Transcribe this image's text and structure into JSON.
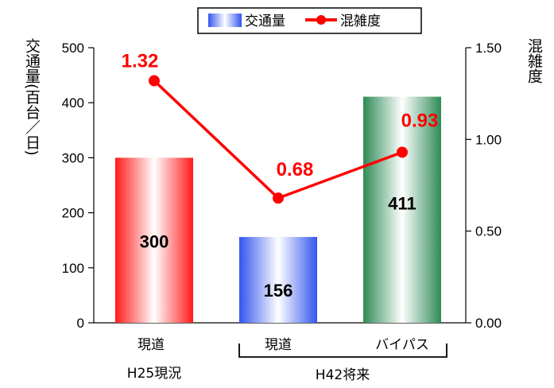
{
  "chart_data": {
    "type": "bar",
    "categories": [
      "現道",
      "現道",
      "バイパス"
    ],
    "groups": [
      {
        "label": "H25現況",
        "categories": [
          0
        ]
      },
      {
        "label": "H42将来",
        "categories": [
          1,
          2
        ]
      }
    ],
    "ylabel_left": "交通量(百台／日)",
    "ylabel_right": "混雑度",
    "ylim_left": [
      0,
      500
    ],
    "yticks_left": [
      "0",
      "100",
      "200",
      "300",
      "400",
      "500"
    ],
    "ylim_right": [
      0,
      1.5
    ],
    "yticks_right": [
      "0.00",
      "0.50",
      "1.00",
      "1.50"
    ],
    "grid": false,
    "legend_position": "top-right",
    "series": [
      {
        "name": "交通量",
        "type": "bar",
        "axis": "left",
        "values": [
          300,
          156,
          411
        ],
        "labels": [
          "300",
          "156",
          "411"
        ],
        "colors": [
          "#ff1a1a",
          "#3355ee",
          "#2e8b57"
        ]
      },
      {
        "name": "混雑度",
        "type": "line",
        "axis": "right",
        "values": [
          1.32,
          0.68,
          0.93
        ],
        "labels": [
          "1.32",
          "0.68",
          "0.93"
        ],
        "color": "#ff0000"
      }
    ]
  }
}
